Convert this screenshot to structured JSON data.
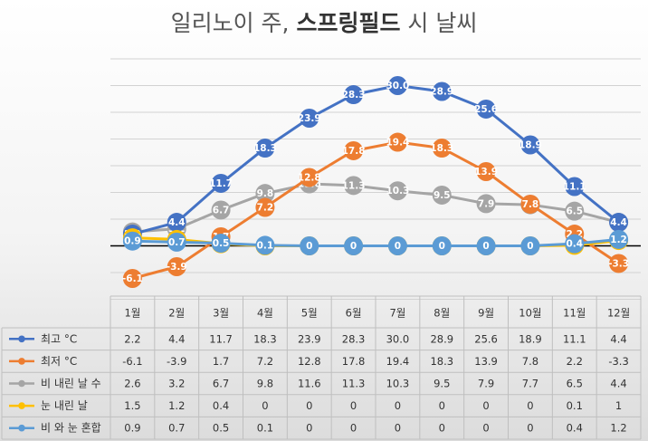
{
  "title_part1": "일리노이 주, ",
  "title_part2": "스프링필드",
  "title_part3": " 시 날씨",
  "chart_data": {
    "type": "line",
    "categories": [
      "1월",
      "2월",
      "3월",
      "4월",
      "5월",
      "6월",
      "7월",
      "8월",
      "9월",
      "10월",
      "11월",
      "12월"
    ],
    "ylim": [
      -10,
      35
    ],
    "grid": true,
    "legend": "table-bottom",
    "series": [
      {
        "name": "최고 °C",
        "color": "#4472c4",
        "values": [
          2.2,
          4.4,
          11.7,
          18.3,
          23.9,
          28.3,
          30.0,
          28.9,
          25.6,
          18.9,
          11.1,
          4.4
        ],
        "labels": [
          "2.2",
          "4.4",
          "11.7",
          "18.3",
          "23.9",
          "28.3",
          "30.0",
          "28.9",
          "25.6",
          "18.9",
          "11.1",
          "4.4"
        ]
      },
      {
        "name": "최저 °C",
        "color": "#ed7d31",
        "values": [
          -6.1,
          -3.9,
          1.7,
          7.2,
          12.8,
          17.8,
          19.4,
          18.3,
          13.9,
          7.8,
          2.2,
          -3.3
        ],
        "labels": [
          "-6.1",
          "-3.9",
          "1.7",
          "7.2",
          "12.8",
          "17.8",
          "19.4",
          "18.3",
          "13.9",
          "7.8",
          "2.2",
          "-3.3"
        ]
      },
      {
        "name": "비 내린 날 수",
        "color": "#a5a5a5",
        "values": [
          2.6,
          3.2,
          6.7,
          9.8,
          11.6,
          11.3,
          10.3,
          9.5,
          7.9,
          7.7,
          6.5,
          4.4
        ],
        "labels": [
          "2.6",
          "3.2",
          "6.7",
          "9.8",
          "11.6",
          "11.3",
          "10.3",
          "9.5",
          "7.9",
          "7.7",
          "6.5",
          "4.4"
        ]
      },
      {
        "name": "눈 내린 날",
        "color": "#ffc000",
        "values": [
          1.5,
          1.2,
          0.4,
          0,
          0,
          0,
          0,
          0,
          0,
          0,
          0.1,
          1
        ],
        "labels": [
          "1.5",
          "1.2",
          "0.4",
          "0",
          "0",
          "0",
          "0",
          "0",
          "0",
          "0",
          "0.1",
          "1"
        ]
      },
      {
        "name": "비 와 눈 혼합",
        "color": "#5b9bd5",
        "values": [
          0.9,
          0.7,
          0.5,
          0.1,
          0,
          0,
          0,
          0,
          0,
          0,
          0.4,
          1.2
        ],
        "labels": [
          "0.9",
          "0.7",
          "0.5",
          "0.1",
          "0",
          "0",
          "0",
          "0",
          "0",
          "0",
          "0.4",
          "1.2"
        ]
      }
    ]
  }
}
